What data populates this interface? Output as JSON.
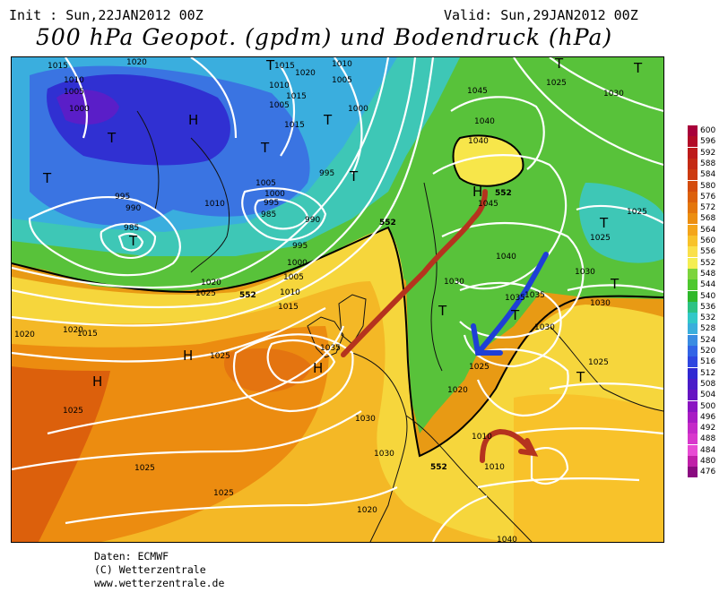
{
  "header": {
    "init": "Init : Sun,22JAN2012 00Z",
    "valid": "Valid: Sun,29JAN2012 00Z",
    "title": "500 hPa Geopot. (gpdm) und Bodendruck (hPa)"
  },
  "map": {
    "isobar_labels": [
      "1015",
      "1020",
      "1010",
      "1005",
      "1000",
      "995",
      "990",
      "985",
      "1015",
      "1020",
      "1010",
      "1005",
      "1015",
      "1010",
      "1005",
      "1000",
      "1015",
      "1005",
      "1000",
      "995",
      "1010",
      "995",
      "985",
      "990",
      "995",
      "1000",
      "1005",
      "1010",
      "1015",
      "1020",
      "1025",
      "1015",
      "1020",
      "1025",
      "1030",
      "1025",
      "1030",
      "1025",
      "1035",
      "1045",
      "1040",
      "1040",
      "1045",
      "1040",
      "1035",
      "1030",
      "1025",
      "1030",
      "1025",
      "1025",
      "1030",
      "1030",
      "1025",
      "1020",
      "1010",
      "1010",
      "1020",
      "1025",
      "1020",
      "1035",
      "1030",
      "1040",
      "1025"
    ],
    "geopot_labels": [
      "552",
      "552",
      "552",
      "552"
    ],
    "pressure_centers": [
      {
        "symbol": "H",
        "meaning": "high"
      },
      {
        "symbol": "H",
        "meaning": "high"
      },
      {
        "symbol": "H",
        "meaning": "high"
      },
      {
        "symbol": "H",
        "meaning": "high"
      },
      {
        "symbol": "H",
        "meaning": "high"
      },
      {
        "symbol": "T",
        "meaning": "low"
      },
      {
        "symbol": "T",
        "meaning": "low"
      },
      {
        "symbol": "T",
        "meaning": "low"
      },
      {
        "symbol": "T",
        "meaning": "low"
      },
      {
        "symbol": "T",
        "meaning": "low"
      },
      {
        "symbol": "T",
        "meaning": "low"
      },
      {
        "symbol": "T",
        "meaning": "low"
      },
      {
        "symbol": "T",
        "meaning": "low"
      },
      {
        "symbol": "T",
        "meaning": "low"
      },
      {
        "symbol": "T",
        "meaning": "low"
      },
      {
        "symbol": "T",
        "meaning": "low"
      },
      {
        "symbol": "T",
        "meaning": "low"
      },
      {
        "symbol": "T",
        "meaning": "low"
      },
      {
        "symbol": "T",
        "meaning": "low"
      }
    ],
    "annotations": [
      {
        "meaning": "warm air flow",
        "color": "#b5331e"
      },
      {
        "meaning": "cold air flow",
        "color": "#1e3fd6"
      },
      {
        "meaning": "warm air flow",
        "color": "#b5331e"
      }
    ]
  },
  "legend": {
    "units": "gpdm",
    "items": [
      {
        "value": "600",
        "color": "#a8003a"
      },
      {
        "value": "596",
        "color": "#b20b26"
      },
      {
        "value": "592",
        "color": "#bd1a1a"
      },
      {
        "value": "588",
        "color": "#c42a14"
      },
      {
        "value": "584",
        "color": "#cc3a10"
      },
      {
        "value": "580",
        "color": "#d44c0e"
      },
      {
        "value": "576",
        "color": "#dc600c"
      },
      {
        "value": "572",
        "color": "#e4760c"
      },
      {
        "value": "568",
        "color": "#ec8e10"
      },
      {
        "value": "564",
        "color": "#f4a51a"
      },
      {
        "value": "560",
        "color": "#f8c22a"
      },
      {
        "value": "556",
        "color": "#fae04a"
      },
      {
        "value": "552",
        "color": "#f4ee52"
      },
      {
        "value": "548",
        "color": "#7cd43c"
      },
      {
        "value": "544",
        "color": "#4ec82e"
      },
      {
        "value": "540",
        "color": "#2eb82a"
      },
      {
        "value": "536",
        "color": "#2cc284"
      },
      {
        "value": "532",
        "color": "#32c8c8"
      },
      {
        "value": "528",
        "color": "#3aaedc"
      },
      {
        "value": "524",
        "color": "#3a8ce2"
      },
      {
        "value": "520",
        "color": "#3264e6"
      },
      {
        "value": "516",
        "color": "#2e46e0"
      },
      {
        "value": "512",
        "color": "#3028d2"
      },
      {
        "value": "508",
        "color": "#4a1cc8"
      },
      {
        "value": "504",
        "color": "#6614c2"
      },
      {
        "value": "500",
        "color": "#8a14c2"
      },
      {
        "value": "496",
        "color": "#a81cc4"
      },
      {
        "value": "492",
        "color": "#c42ac8"
      },
      {
        "value": "488",
        "color": "#d838cc"
      },
      {
        "value": "484",
        "color": "#e84cd4"
      },
      {
        "value": "480",
        "color": "#c020a8"
      },
      {
        "value": "476",
        "color": "#8a0a80"
      }
    ]
  },
  "footer": {
    "line1": "Daten: ECMWF",
    "line2": "(C) Wetterzentrale",
    "line3": "www.wetterzentrale.de"
  }
}
